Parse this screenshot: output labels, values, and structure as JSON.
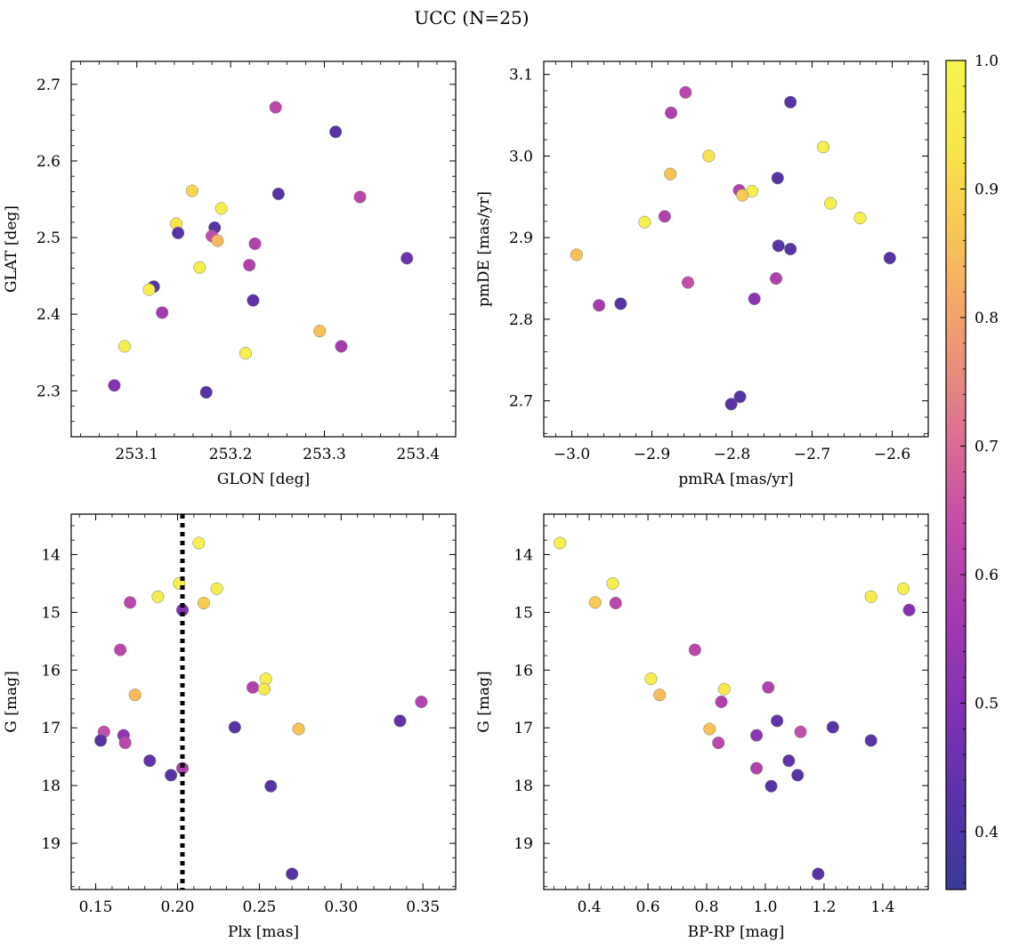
{
  "figure": {
    "title": "UCC (N=25)"
  },
  "colorbar": {
    "min": 0.355,
    "max": 1.0,
    "ticks": [
      0.4,
      0.5,
      0.6,
      0.7,
      0.8,
      0.9,
      1.0
    ],
    "tick_labels": [
      "0.4",
      "0.5",
      "0.6",
      "0.7",
      "0.8",
      "0.9",
      "1.0"
    ],
    "colormap": "plasma (truncated)",
    "stops": [
      "#3a3a96",
      "#5a32a8",
      "#8232b4",
      "#a53ab0",
      "#c24ea8",
      "#db7490",
      "#f09a72",
      "#f8c058",
      "#f8e44a",
      "#f4f550"
    ]
  },
  "chart_data": [
    {
      "type": "scatter",
      "xlabel": "GLON [deg]",
      "ylabel": "GLAT [deg]",
      "xlim": [
        253.03,
        253.44
      ],
      "ylim": [
        2.24,
        2.73
      ],
      "y_inverted": false,
      "xticks": [
        253.1,
        253.2,
        253.3,
        253.4
      ],
      "xtick_labels": [
        "253.1",
        "253.2",
        "253.3",
        "253.4"
      ],
      "yticks": [
        2.3,
        2.4,
        2.5,
        2.6,
        2.7
      ],
      "ytick_labels": [
        "2.3",
        "2.4",
        "2.5",
        "2.6",
        "2.7"
      ],
      "points": [
        {
          "x": 253.248,
          "y": 2.67,
          "c": 0.62
        },
        {
          "x": 253.312,
          "y": 2.638,
          "c": 0.42
        },
        {
          "x": 253.159,
          "y": 2.561,
          "c": 0.9
        },
        {
          "x": 253.251,
          "y": 2.557,
          "c": 0.42
        },
        {
          "x": 253.338,
          "y": 2.553,
          "c": 0.62
        },
        {
          "x": 253.19,
          "y": 2.538,
          "c": 0.97
        },
        {
          "x": 253.142,
          "y": 2.518,
          "c": 0.93
        },
        {
          "x": 253.183,
          "y": 2.513,
          "c": 0.42
        },
        {
          "x": 253.144,
          "y": 2.506,
          "c": 0.42
        },
        {
          "x": 253.18,
          "y": 2.502,
          "c": 0.64
        },
        {
          "x": 253.186,
          "y": 2.496,
          "c": 0.84
        },
        {
          "x": 253.226,
          "y": 2.492,
          "c": 0.6
        },
        {
          "x": 253.388,
          "y": 2.473,
          "c": 0.46
        },
        {
          "x": 253.22,
          "y": 2.464,
          "c": 0.6
        },
        {
          "x": 253.167,
          "y": 2.461,
          "c": 0.97
        },
        {
          "x": 253.118,
          "y": 2.436,
          "c": 0.42
        },
        {
          "x": 253.113,
          "y": 2.432,
          "c": 0.98
        },
        {
          "x": 253.224,
          "y": 2.418,
          "c": 0.44
        },
        {
          "x": 253.127,
          "y": 2.402,
          "c": 0.57
        },
        {
          "x": 253.295,
          "y": 2.378,
          "c": 0.86
        },
        {
          "x": 253.087,
          "y": 2.358,
          "c": 0.97
        },
        {
          "x": 253.318,
          "y": 2.358,
          "c": 0.57
        },
        {
          "x": 253.216,
          "y": 2.349,
          "c": 0.98
        },
        {
          "x": 253.076,
          "y": 2.307,
          "c": 0.5
        },
        {
          "x": 253.174,
          "y": 2.298,
          "c": 0.42
        }
      ]
    },
    {
      "type": "scatter",
      "xlabel": "pmRA [mas/yr]",
      "ylabel": "pmDE [mas/yr]",
      "xlim": [
        -3.035,
        -2.555
      ],
      "ylim": [
        2.656,
        3.116
      ],
      "y_inverted": false,
      "xticks": [
        -3.0,
        -2.9,
        -2.8,
        -2.7,
        -2.6
      ],
      "xtick_labels": [
        "−3.0",
        "−2.9",
        "−2.8",
        "−2.7",
        "−2.6"
      ],
      "yticks": [
        2.7,
        2.8,
        2.9,
        3.0,
        3.1
      ],
      "ytick_labels": [
        "2.7",
        "2.8",
        "2.9",
        "3.0",
        "3.1"
      ],
      "points": [
        {
          "x": -2.858,
          "y": 3.078,
          "c": 0.62
        },
        {
          "x": -2.727,
          "y": 3.066,
          "c": 0.42
        },
        {
          "x": -2.876,
          "y": 3.053,
          "c": 0.6
        },
        {
          "x": -2.686,
          "y": 3.011,
          "c": 0.97
        },
        {
          "x": -2.829,
          "y": 3.0,
          "c": 0.93
        },
        {
          "x": -2.877,
          "y": 2.978,
          "c": 0.86
        },
        {
          "x": -2.743,
          "y": 2.973,
          "c": 0.42
        },
        {
          "x": -2.791,
          "y": 2.958,
          "c": 0.6
        },
        {
          "x": -2.775,
          "y": 2.957,
          "c": 0.98
        },
        {
          "x": -2.787,
          "y": 2.952,
          "c": 0.88
        },
        {
          "x": -2.677,
          "y": 2.942,
          "c": 0.97
        },
        {
          "x": -2.64,
          "y": 2.924,
          "c": 0.98
        },
        {
          "x": -2.884,
          "y": 2.926,
          "c": 0.6
        },
        {
          "x": -2.909,
          "y": 2.919,
          "c": 0.98
        },
        {
          "x": -2.742,
          "y": 2.89,
          "c": 0.42
        },
        {
          "x": -2.727,
          "y": 2.886,
          "c": 0.42
        },
        {
          "x": -2.994,
          "y": 2.879,
          "c": 0.86
        },
        {
          "x": -2.603,
          "y": 2.875,
          "c": 0.42
        },
        {
          "x": -2.745,
          "y": 2.85,
          "c": 0.6
        },
        {
          "x": -2.855,
          "y": 2.845,
          "c": 0.64
        },
        {
          "x": -2.772,
          "y": 2.825,
          "c": 0.52
        },
        {
          "x": -2.966,
          "y": 2.817,
          "c": 0.57
        },
        {
          "x": -2.939,
          "y": 2.819,
          "c": 0.42
        },
        {
          "x": -2.79,
          "y": 2.705,
          "c": 0.42
        },
        {
          "x": -2.801,
          "y": 2.696,
          "c": 0.42
        }
      ]
    },
    {
      "type": "scatter",
      "xlabel": "Plx [mas]",
      "ylabel": "G [mag]",
      "xlim": [
        0.135,
        0.37
      ],
      "ylim": [
        13.3,
        19.8
      ],
      "y_inverted": true,
      "xticks": [
        0.15,
        0.2,
        0.25,
        0.3,
        0.35
      ],
      "xtick_labels": [
        "0.15",
        "0.20",
        "0.25",
        "0.30",
        "0.35"
      ],
      "yticks": [
        14,
        15,
        16,
        17,
        18,
        19
      ],
      "ytick_labels": [
        "14",
        "15",
        "16",
        "17",
        "18",
        "19"
      ],
      "vline": {
        "x": 0.203,
        "style": "dotted"
      },
      "points": [
        {
          "x": 0.213,
          "y": 13.8,
          "c": 0.98
        },
        {
          "x": 0.201,
          "y": 14.5,
          "c": 0.98
        },
        {
          "x": 0.224,
          "y": 14.59,
          "c": 0.97
        },
        {
          "x": 0.188,
          "y": 14.73,
          "c": 0.96
        },
        {
          "x": 0.171,
          "y": 14.83,
          "c": 0.62
        },
        {
          "x": 0.216,
          "y": 14.84,
          "c": 0.88
        },
        {
          "x": 0.203,
          "y": 14.96,
          "c": 0.5
        },
        {
          "x": 0.165,
          "y": 15.65,
          "c": 0.62
        },
        {
          "x": 0.254,
          "y": 16.15,
          "c": 0.97
        },
        {
          "x": 0.246,
          "y": 16.3,
          "c": 0.6
        },
        {
          "x": 0.253,
          "y": 16.33,
          "c": 0.95
        },
        {
          "x": 0.174,
          "y": 16.43,
          "c": 0.85
        },
        {
          "x": 0.349,
          "y": 16.55,
          "c": 0.6
        },
        {
          "x": 0.336,
          "y": 16.88,
          "c": 0.44
        },
        {
          "x": 0.235,
          "y": 16.99,
          "c": 0.42
        },
        {
          "x": 0.274,
          "y": 17.02,
          "c": 0.86
        },
        {
          "x": 0.155,
          "y": 17.07,
          "c": 0.64
        },
        {
          "x": 0.167,
          "y": 17.13,
          "c": 0.52
        },
        {
          "x": 0.153,
          "y": 17.22,
          "c": 0.42
        },
        {
          "x": 0.168,
          "y": 17.26,
          "c": 0.62
        },
        {
          "x": 0.183,
          "y": 17.57,
          "c": 0.44
        },
        {
          "x": 0.203,
          "y": 17.7,
          "c": 0.6
        },
        {
          "x": 0.196,
          "y": 17.82,
          "c": 0.42
        },
        {
          "x": 0.257,
          "y": 18.01,
          "c": 0.42
        },
        {
          "x": 0.27,
          "y": 19.53,
          "c": 0.42
        }
      ]
    },
    {
      "type": "scatter",
      "xlabel": "BP-RP [mag]",
      "ylabel": "G [mag]",
      "xlim": [
        0.245,
        1.555
      ],
      "ylim": [
        13.3,
        19.8
      ],
      "y_inverted": true,
      "xticks": [
        0.4,
        0.6,
        0.8,
        1.0,
        1.2,
        1.4
      ],
      "xtick_labels": [
        "0.4",
        "0.6",
        "0.8",
        "1.0",
        "1.2",
        "1.4"
      ],
      "yticks": [
        14,
        15,
        16,
        17,
        18,
        19
      ],
      "ytick_labels": [
        "14",
        "15",
        "16",
        "17",
        "18",
        "19"
      ],
      "points": [
        {
          "x": 0.3,
          "y": 13.8,
          "c": 0.98
        },
        {
          "x": 0.48,
          "y": 14.5,
          "c": 0.98
        },
        {
          "x": 1.47,
          "y": 14.59,
          "c": 0.97
        },
        {
          "x": 1.36,
          "y": 14.73,
          "c": 0.96
        },
        {
          "x": 0.42,
          "y": 14.83,
          "c": 0.88
        },
        {
          "x": 0.49,
          "y": 14.84,
          "c": 0.62
        },
        {
          "x": 1.49,
          "y": 14.96,
          "c": 0.5
        },
        {
          "x": 0.76,
          "y": 15.65,
          "c": 0.62
        },
        {
          "x": 0.61,
          "y": 16.15,
          "c": 0.97
        },
        {
          "x": 1.01,
          "y": 16.3,
          "c": 0.6
        },
        {
          "x": 0.86,
          "y": 16.33,
          "c": 0.95
        },
        {
          "x": 0.64,
          "y": 16.43,
          "c": 0.85
        },
        {
          "x": 0.85,
          "y": 16.55,
          "c": 0.6
        },
        {
          "x": 1.04,
          "y": 16.88,
          "c": 0.44
        },
        {
          "x": 1.23,
          "y": 16.99,
          "c": 0.42
        },
        {
          "x": 0.81,
          "y": 17.02,
          "c": 0.86
        },
        {
          "x": 1.12,
          "y": 17.07,
          "c": 0.64
        },
        {
          "x": 0.97,
          "y": 17.13,
          "c": 0.52
        },
        {
          "x": 1.36,
          "y": 17.22,
          "c": 0.42
        },
        {
          "x": 0.84,
          "y": 17.26,
          "c": 0.62
        },
        {
          "x": 1.08,
          "y": 17.57,
          "c": 0.44
        },
        {
          "x": 0.97,
          "y": 17.7,
          "c": 0.6
        },
        {
          "x": 1.11,
          "y": 17.82,
          "c": 0.42
        },
        {
          "x": 1.02,
          "y": 18.01,
          "c": 0.42
        },
        {
          "x": 1.18,
          "y": 19.53,
          "c": 0.42
        }
      ]
    }
  ]
}
